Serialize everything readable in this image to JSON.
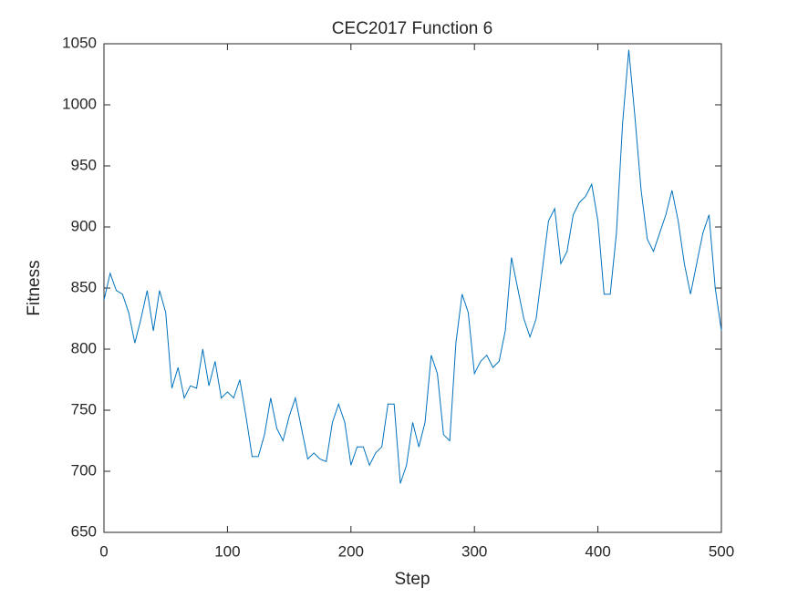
{
  "chart_data": {
    "type": "line",
    "title": "CEC2017 Function 6",
    "x_label": "Step",
    "y_label": "Fitness",
    "x": [
      0,
      5,
      10,
      15,
      20,
      25,
      30,
      35,
      40,
      45,
      50,
      55,
      60,
      65,
      70,
      75,
      80,
      85,
      90,
      95,
      100,
      105,
      110,
      115,
      120,
      125,
      130,
      135,
      140,
      145,
      150,
      155,
      160,
      165,
      170,
      175,
      180,
      185,
      190,
      195,
      200,
      205,
      210,
      215,
      220,
      225,
      230,
      235,
      240,
      245,
      250,
      255,
      260,
      265,
      270,
      275,
      280,
      285,
      290,
      295,
      300,
      305,
      310,
      315,
      320,
      325,
      330,
      335,
      340,
      345,
      350,
      355,
      360,
      365,
      370,
      375,
      380,
      385,
      390,
      395,
      400,
      405,
      410,
      415,
      420,
      425,
      430,
      435,
      440,
      445,
      450,
      455,
      460,
      465,
      470,
      475,
      480,
      485,
      490,
      495,
      500
    ],
    "series": [
      {
        "name": "Fitness",
        "color": "#0072bd",
        "values": [
          840,
          862,
          848,
          845,
          830,
          805,
          825,
          848,
          815,
          848,
          830,
          768,
          785,
          760,
          770,
          768,
          800,
          770,
          790,
          760,
          765,
          760,
          775,
          745,
          712,
          712,
          730,
          760,
          735,
          725,
          745,
          760,
          735,
          710,
          715,
          710,
          708,
          740,
          755,
          740,
          705,
          720,
          720,
          705,
          715,
          720,
          755,
          755,
          690,
          705,
          740,
          720,
          740,
          795,
          780,
          730,
          725,
          805,
          845,
          830,
          780,
          790,
          795,
          785,
          790,
          815,
          875,
          850,
          825,
          810,
          825,
          865,
          905,
          915,
          870,
          880,
          910,
          920,
          925,
          935,
          905,
          845,
          845,
          895,
          985,
          1045,
          990,
          930,
          890,
          880,
          895,
          910,
          930,
          905,
          870,
          845,
          870,
          895,
          910,
          850,
          815
        ]
      }
    ],
    "xlim": [
      0,
      500
    ],
    "xticks": [
      0,
      100,
      200,
      300,
      400,
      500
    ],
    "ylim": [
      650,
      1050
    ],
    "yticks": [
      650,
      700,
      750,
      800,
      850,
      900,
      950,
      1000,
      1050
    ]
  }
}
